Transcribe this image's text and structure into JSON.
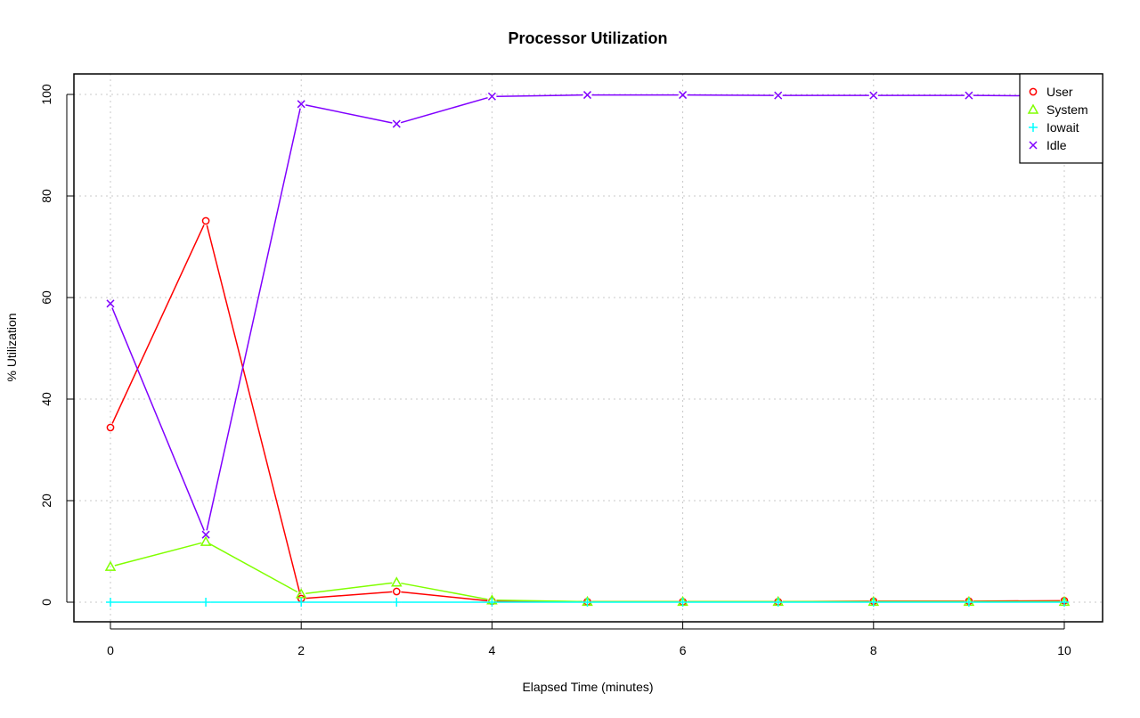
{
  "chart_data": {
    "type": "line",
    "title": "Processor Utilization",
    "xlabel": "Elapsed Time (minutes)",
    "ylabel": "% Utilization",
    "x": [
      0,
      1,
      2,
      3,
      4,
      5,
      6,
      7,
      8,
      9,
      10
    ],
    "xlim": [
      0,
      10
    ],
    "ylim": [
      0,
      100
    ],
    "xticks": [
      0,
      2,
      4,
      6,
      8,
      10
    ],
    "yticks": [
      0,
      20,
      40,
      60,
      80,
      100
    ],
    "grid": true,
    "legend_position": "top-right",
    "series": [
      {
        "name": "User",
        "color": "#ff0000",
        "marker": "circle",
        "values": [
          34.4,
          75.1,
          0.7,
          2.1,
          0.2,
          0.1,
          0.1,
          0.1,
          0.2,
          0.2,
          0.3
        ]
      },
      {
        "name": "System",
        "color": "#80ff00",
        "marker": "triangle",
        "values": [
          7.0,
          11.9,
          1.6,
          3.9,
          0.4,
          0.1,
          0.1,
          0.1,
          0.1,
          0.1,
          0.1
        ]
      },
      {
        "name": "Iowait",
        "color": "#00ffff",
        "marker": "plus",
        "values": [
          0,
          0,
          0,
          0,
          0,
          0,
          0,
          0,
          0,
          0,
          0
        ]
      },
      {
        "name": "Idle",
        "color": "#8000ff",
        "marker": "cross",
        "values": [
          58.8,
          13.3,
          98.1,
          94.2,
          99.6,
          99.9,
          99.9,
          99.8,
          99.8,
          99.8,
          99.7
        ]
      }
    ]
  }
}
